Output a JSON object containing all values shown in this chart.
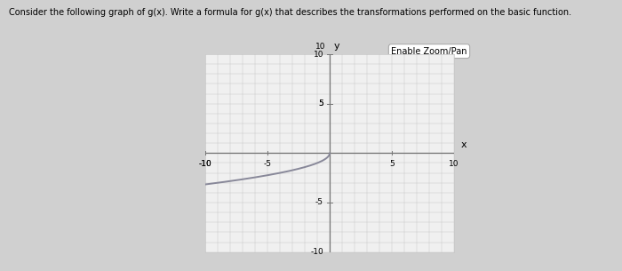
{
  "title": "Consider the following graph of g(x). Write a formula for g(x) that describes the transformations performed on the basic function.",
  "enable_zoom_text": "Enable Zoom/Pan",
  "xlim": [
    -10,
    10
  ],
  "ylim": [
    -10,
    10
  ],
  "xtick_vals": [
    -10,
    -5,
    5,
    10
  ],
  "ytick_vals": [
    -10,
    -5,
    5,
    10
  ],
  "xtick_labels": [
    "-10",
    "-5",
    "5",
    "10"
  ],
  "ytick_labels": [
    "-10",
    "-5",
    "5",
    "10"
  ],
  "grid_color": "#c8c8c8",
  "axis_color": "#777777",
  "curve_color": "#888899",
  "fig_bg_color": "#d0d0d0",
  "panel_bg_color": "#e8e8e8",
  "plot_bg_color": "#f0f0f0",
  "curve_linewidth": 1.4,
  "title_fontsize": 7.0,
  "tick_fontsize": 6.5,
  "axis_label_fontsize": 8
}
